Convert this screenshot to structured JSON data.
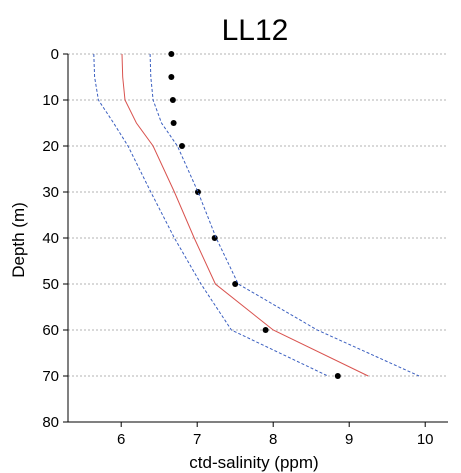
{
  "chart_data": {
    "type": "line",
    "title": "LL12",
    "xlabel": "ctd-salinity (ppm)",
    "ylabel": "Depth (m)",
    "xlim": [
      5.3,
      10.3
    ],
    "ylim": [
      0,
      80
    ],
    "y_inverted": true,
    "grid": "horizontal",
    "xticks": [
      6,
      7,
      8,
      9,
      10
    ],
    "yticks": [
      0,
      10,
      20,
      30,
      40,
      50,
      60,
      70,
      80
    ],
    "series": [
      {
        "kind": "scatter",
        "color": "#000000",
        "points": [
          {
            "x": 6.66,
            "y": 0
          },
          {
            "x": 6.66,
            "y": 5
          },
          {
            "x": 6.68,
            "y": 10
          },
          {
            "x": 6.69,
            "y": 15
          },
          {
            "x": 6.8,
            "y": 20
          },
          {
            "x": 7.01,
            "y": 30
          },
          {
            "x": 7.23,
            "y": 40
          },
          {
            "x": 7.5,
            "y": 50
          },
          {
            "x": 7.9,
            "y": 60
          },
          {
            "x": 8.85,
            "y": 70
          }
        ]
      },
      {
        "kind": "line",
        "style": "solid",
        "color": "#d9534f",
        "points": [
          {
            "x": 6.01,
            "y": 0
          },
          {
            "x": 6.02,
            "y": 5
          },
          {
            "x": 6.05,
            "y": 10
          },
          {
            "x": 6.2,
            "y": 15
          },
          {
            "x": 6.42,
            "y": 20
          },
          {
            "x": 6.7,
            "y": 30
          },
          {
            "x": 6.96,
            "y": 40
          },
          {
            "x": 7.24,
            "y": 50
          },
          {
            "x": 8.0,
            "y": 60
          },
          {
            "x": 9.25,
            "y": 70
          }
        ]
      },
      {
        "kind": "line",
        "style": "dashed",
        "color": "#3b5fc0",
        "points": [
          {
            "x": 5.64,
            "y": 0
          },
          {
            "x": 5.65,
            "y": 5
          },
          {
            "x": 5.7,
            "y": 10
          },
          {
            "x": 5.9,
            "y": 15
          },
          {
            "x": 6.09,
            "y": 20
          },
          {
            "x": 6.39,
            "y": 30
          },
          {
            "x": 6.7,
            "y": 40
          },
          {
            "x": 7.05,
            "y": 50
          },
          {
            "x": 7.45,
            "y": 60
          },
          {
            "x": 8.72,
            "y": 70
          }
        ]
      },
      {
        "kind": "line",
        "style": "dashed",
        "color": "#3b5fc0",
        "points": [
          {
            "x": 6.38,
            "y": 0
          },
          {
            "x": 6.39,
            "y": 5
          },
          {
            "x": 6.42,
            "y": 10
          },
          {
            "x": 6.53,
            "y": 15
          },
          {
            "x": 6.74,
            "y": 20
          },
          {
            "x": 7.01,
            "y": 30
          },
          {
            "x": 7.25,
            "y": 40
          },
          {
            "x": 7.54,
            "y": 50
          },
          {
            "x": 8.58,
            "y": 60
          },
          {
            "x": 9.92,
            "y": 70
          }
        ]
      }
    ]
  }
}
